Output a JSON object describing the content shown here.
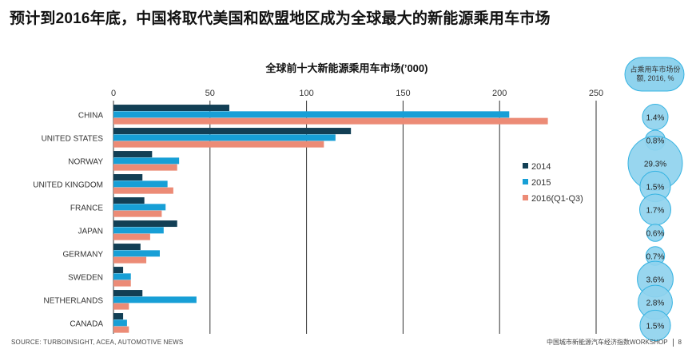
{
  "slide": {
    "title": "预计到2016年底，中国将取代美国和欧盟地区成为全球最大的新能源乘用车市场"
  },
  "footer": {
    "source": "SOURCE: TURBOINSIGHT,  ACEA, AUTOMOTIVE  NEWS",
    "right_text": "中国城市新能源汽车经济指数WORKSHOP",
    "page_number": "8"
  },
  "colors": {
    "s2014": "#123f55",
    "s2015": "#179fd6",
    "s2016": "#ec8b76",
    "bubble_fill": "#8fd3ee",
    "bubble_stroke": "#35b3e2",
    "grid": "#333333"
  },
  "chart_data": {
    "type": "bar",
    "orientation": "horizontal",
    "title": "全球前十大新能源乘用车市场(’000)",
    "xlim": [
      0,
      250
    ],
    "xticks": [
      "0",
      "50",
      "100",
      "150",
      "200",
      "250"
    ],
    "categories": [
      "CHINA",
      "UNITED STATES",
      "NORWAY",
      "UNITED KINGDOM",
      "FRANCE",
      "JAPAN",
      "GERMANY",
      "SWEDEN",
      "NETHERLANDS",
      "CANADA"
    ],
    "series": [
      {
        "name": "2014",
        "values": [
          60,
          123,
          20,
          15,
          16,
          33,
          14,
          5,
          15,
          5
        ]
      },
      {
        "name": "2015",
        "values": [
          205,
          115,
          34,
          28,
          27,
          26,
          24,
          9,
          43,
          7
        ]
      },
      {
        "name": "2016(Q1-Q3)",
        "values": [
          225,
          109,
          33,
          31,
          25,
          19,
          17,
          9,
          8,
          8
        ]
      }
    ],
    "legend_position": "right",
    "share_panel": {
      "title": "占乘用车市场份额, 2016, %",
      "values": [
        1.4,
        0.8,
        29.3,
        1.5,
        1.7,
        0.6,
        0.7,
        3.6,
        2.8,
        1.5
      ],
      "labels": [
        "1.4%",
        "0.8%",
        "29.3%",
        "1.5%",
        "1.7%",
        "0.6%",
        "0.7%",
        "3.6%",
        "2.8%",
        "1.5%"
      ]
    }
  }
}
